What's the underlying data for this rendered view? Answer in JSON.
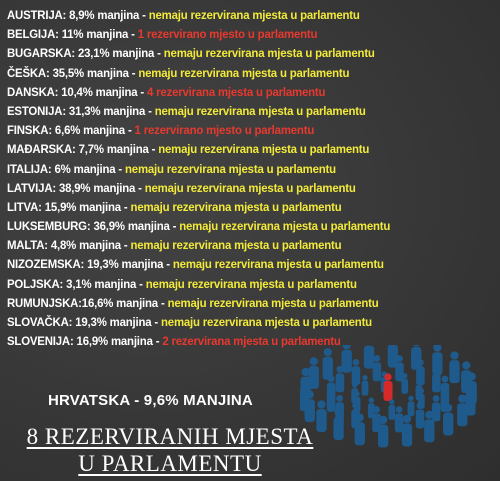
{
  "rows": [
    {
      "country": "AUSTRIJA:",
      "stat": " 8,9% manjina",
      "note": "nemaju rezervirana mjesta u parlamentu",
      "tone": "yellow"
    },
    {
      "country": "BELGIJA:",
      "stat": " 11% manjina",
      "note": "1 rezervirano mjesto u parlamentu",
      "tone": "red"
    },
    {
      "country": "BUGARSKA:",
      "stat": " 23,1% manjina",
      "note": "nemaju rezervirana mjesta u parlamentu",
      "tone": "yellow"
    },
    {
      "country": "ČEŠKA:",
      "stat": " 35,5% manjina",
      "note": "nemaju rezervirana mjesta u parlamentu",
      "tone": "yellow"
    },
    {
      "country": "DANSKA:",
      "stat": " 10,4% manjina",
      "note": "4 rezervirana mjesta u parlamentu",
      "tone": "red"
    },
    {
      "country": "ESTONIJA:",
      "stat": " 31,3% manjina",
      "note": "nemaju rezervirana mjesta u parlamentu",
      "tone": "yellow"
    },
    {
      "country": "FINSKA:",
      "stat": " 6,6% manjina",
      "note": "1 rezervirano mjesto u parlamentu",
      "tone": "red"
    },
    {
      "country": "MAĐARSKA:",
      "stat": " 7,7% manjina",
      "note": "nemaju rezervirana mjesta u parlamentu",
      "tone": "yellow"
    },
    {
      "country": "ITALIJA:",
      "stat": " 6% manjina",
      "note": "nemaju rezervirana mjesta u parlamentu",
      "tone": "yellow"
    },
    {
      "country": "LATVIJA:",
      "stat": " 38,9% manjina",
      "note": "nemaju rezervirana mjesta u parlamentu",
      "tone": "yellow"
    },
    {
      "country": "LITVA:",
      "stat": " 15,9% manjina",
      "note": "nemaju rezervirana mjesta u parlamentu",
      "tone": "yellow"
    },
    {
      "country": "LUKSEMBURG:",
      "stat": " 36,9% manjina",
      "note": "nemaju rezervirana mjesta u parlamentu",
      "tone": "yellow"
    },
    {
      "country": "MALTA:",
      "stat": " 4,8% manjina",
      "note": "nemaju rezervirana mjesta u parlamentu",
      "tone": "yellow"
    },
    {
      "country": "NIZOZEMSKA:",
      "stat": " 19,3% manjina",
      "note": "nemaju rezervirana mjesta u parlamentu",
      "tone": "yellow"
    },
    {
      "country": "POLJSKA:",
      "stat": " 3,1% manjina",
      "note": "nemaju rezervirana mjesta u parlamentu",
      "tone": "yellow"
    },
    {
      "country": "RUMUNJSKA:",
      "stat": "16,6% manjina",
      "note": "nemaju rezervirana mjesta u parlamentu",
      "tone": "yellow"
    },
    {
      "country": "SLOVAČKA:",
      "stat": " 19,3% manjina",
      "note": "nemaju rezervirana mjesta u parlamentu",
      "tone": "yellow"
    },
    {
      "country": "SLOVENIJA:",
      "stat": " 16,9% manjina",
      "note": "2 rezervirana mjesta u parlamentu",
      "tone": "red"
    }
  ],
  "dash": " - ",
  "headline": "HRVATSKA - 9,6% MANJINA",
  "seats_line1": "8 REZERVIRANIH MJESTA",
  "seats_line2": "U PARLAMENTU",
  "colors": {
    "yellow": "#f2ea3a",
    "red": "#e8392f",
    "text": "#ffffff",
    "background": "#3b3b3b",
    "crowd": "#1e5a8c",
    "highlight": "#d62a2a"
  }
}
